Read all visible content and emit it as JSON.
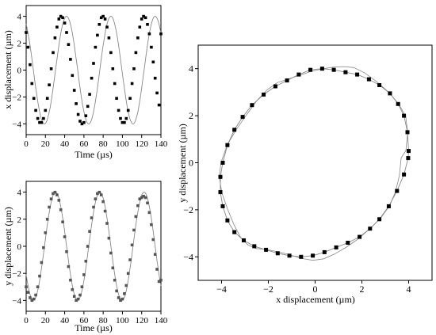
{
  "chart_data": [
    {
      "id": "x-time",
      "type": "line",
      "xlabel": "Time (µs)",
      "ylabel": "x displacement (µm)",
      "xlim": [
        0,
        140
      ],
      "ylim": [
        -4.8,
        4.8
      ],
      "xticks": [
        "0",
        "20",
        "40",
        "60",
        "80",
        "100",
        "120",
        "140"
      ],
      "yticks": [
        "-4",
        "-2",
        "0",
        "2",
        "4"
      ],
      "marker": "square",
      "marker_color": "#000000",
      "line_color": "#888888",
      "series": [
        {
          "model": "4.0*cos(2*pi*(t-42)/46)",
          "x": [
            0,
            2,
            4,
            6,
            8,
            10,
            12,
            14,
            16,
            18,
            20,
            22,
            24,
            26,
            28,
            30,
            32,
            34,
            36,
            38,
            40,
            42,
            44,
            46,
            48,
            50,
            52,
            54,
            56,
            58,
            60,
            62,
            64,
            66,
            68,
            70,
            72,
            74,
            76,
            78,
            80,
            82,
            84,
            86,
            88,
            90,
            92,
            94,
            96,
            98,
            100,
            102,
            104,
            106,
            108,
            110,
            112,
            114,
            116,
            118,
            120,
            122,
            124,
            126,
            128,
            130,
            132,
            134,
            136,
            138,
            140
          ],
          "y": [
            2.8,
            1.7,
            0.4,
            -1.0,
            -2.1,
            -3.0,
            -3.6,
            -3.9,
            -3.9,
            -3.6,
            -3.0,
            -2.1,
            -1.1,
            0.1,
            1.3,
            2.4,
            3.2,
            3.8,
            4.0,
            3.9,
            3.5,
            2.8,
            1.9,
            0.8,
            -0.4,
            -1.5,
            -2.5,
            -3.3,
            -3.8,
            -4.0,
            -3.9,
            -3.4,
            -2.7,
            -1.8,
            -0.6,
            0.5,
            1.7,
            2.6,
            3.4,
            3.9,
            4.0,
            3.8,
            3.2,
            2.4,
            1.3,
            0.1,
            -1.0,
            -2.1,
            -3.0,
            -3.6,
            -3.9,
            -3.9,
            -3.6,
            -3.0,
            -2.1,
            -1.0,
            0.1,
            1.3,
            2.4,
            3.2,
            3.8,
            4.0,
            3.9,
            3.4,
            2.7,
            1.7,
            0.6,
            -0.6,
            -1.7,
            -2.6,
            2.7
          ]
        }
      ]
    },
    {
      "id": "y-time",
      "type": "line",
      "xlabel": "Time (µs)",
      "ylabel": "y displacement (µm)",
      "xlim": [
        0,
        140
      ],
      "ylim": [
        -4.8,
        4.8
      ],
      "xticks": [
        "0",
        "20",
        "40",
        "60",
        "80",
        "100",
        "120",
        "140"
      ],
      "yticks": [
        "-4",
        "-2",
        "0",
        "2",
        "4"
      ],
      "marker": "square",
      "marker_color": "#555555",
      "line_color": "#888888",
      "series": [
        {
          "model": "4.0*sin(2*pi*(t-19)/46)",
          "x": [
            0,
            2,
            4,
            6,
            8,
            10,
            12,
            14,
            16,
            18,
            20,
            22,
            24,
            26,
            28,
            30,
            32,
            34,
            36,
            38,
            40,
            42,
            44,
            46,
            48,
            50,
            52,
            54,
            56,
            58,
            60,
            62,
            64,
            66,
            68,
            70,
            72,
            74,
            76,
            78,
            80,
            82,
            84,
            86,
            88,
            90,
            92,
            94,
            96,
            98,
            100,
            102,
            104,
            106,
            108,
            110,
            112,
            114,
            116,
            118,
            120,
            122,
            124,
            126,
            128,
            130,
            132,
            134,
            136,
            138,
            140
          ],
          "y": [
            -3.0,
            -3.4,
            -3.8,
            -4.0,
            -3.9,
            -3.6,
            -3.0,
            -2.2,
            -1.2,
            -0.1,
            1.0,
            2.0,
            2.9,
            3.5,
            3.9,
            4.0,
            3.8,
            3.4,
            2.7,
            1.8,
            0.7,
            -0.4,
            -1.5,
            -2.5,
            -3.2,
            -3.7,
            -4.0,
            -3.9,
            -3.6,
            -3.0,
            -2.1,
            -1.1,
            0.0,
            1.1,
            2.1,
            2.9,
            3.5,
            3.9,
            4.0,
            3.8,
            3.3,
            2.6,
            1.7,
            0.6,
            -0.5,
            -1.6,
            -2.5,
            -3.3,
            -3.8,
            -4.0,
            -3.9,
            -3.5,
            -2.9,
            -2.0,
            -1.0,
            0.1,
            1.2,
            2.2,
            3.0,
            3.5,
            3.6,
            3.7,
            3.6,
            3.2,
            2.5,
            1.6,
            0.5,
            -0.6,
            -1.7,
            -2.6,
            -2.5
          ]
        }
      ]
    },
    {
      "id": "xy-orbit",
      "type": "scatter",
      "xlabel": "x displacement (µm)",
      "ylabel": "y displacement (µm)",
      "xlim": [
        -5,
        5
      ],
      "ylim": [
        -5,
        5
      ],
      "xticks": [
        "-4",
        "-2",
        "0",
        "2",
        "4"
      ],
      "yticks": [
        "-4",
        "-2",
        "0",
        "2",
        "4"
      ],
      "marker": "square",
      "marker_color": "#000000",
      "line_color": "#888888",
      "series": [
        {
          "x": [
            4.0,
            3.95,
            3.8,
            3.55,
            3.2,
            2.75,
            2.3,
            1.8,
            1.3,
            0.8,
            0.3,
            -0.2,
            -0.7,
            -1.2,
            -1.7,
            -2.2,
            -2.7,
            -3.1,
            -3.45,
            -3.75,
            -3.95,
            -4.05,
            -4.05,
            -3.95,
            -3.75,
            -3.45,
            -3.05,
            -2.6,
            -2.1,
            -1.6,
            -1.1,
            -0.6,
            -0.1,
            0.4,
            0.9,
            1.4,
            1.9,
            2.35,
            2.75,
            3.15,
            3.5,
            3.8,
            3.98
          ],
          "y": [
            0.5,
            1.3,
            2.0,
            2.5,
            2.95,
            3.3,
            3.55,
            3.75,
            3.85,
            3.95,
            4.0,
            3.95,
            3.75,
            3.5,
            3.25,
            2.9,
            2.45,
            1.95,
            1.4,
            0.75,
            0.0,
            -0.6,
            -1.25,
            -1.85,
            -2.45,
            -2.95,
            -3.3,
            -3.55,
            -3.7,
            -3.85,
            -3.95,
            -4.0,
            -3.95,
            -3.8,
            -3.6,
            -3.4,
            -3.15,
            -2.8,
            -2.4,
            -1.85,
            -1.2,
            -0.5,
            0.2
          ]
        }
      ]
    }
  ]
}
